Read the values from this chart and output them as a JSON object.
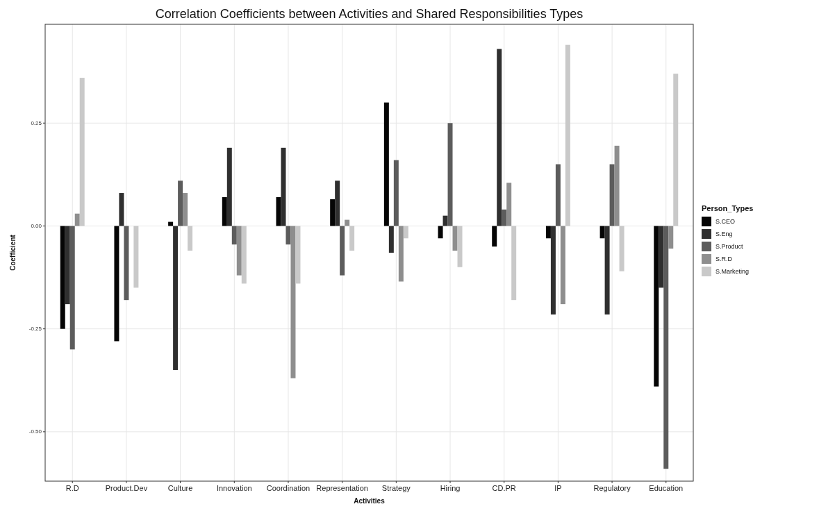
{
  "chart_data": {
    "type": "bar",
    "title": "Correlation Coefficients between Activities and Shared Responsibilities Types",
    "xlabel": "Activities",
    "ylabel": "Coefficient",
    "legend_title": "Person_Types",
    "categories": [
      "R.D",
      "Product.Dev",
      "Culture",
      "Innovation",
      "Coordination",
      "Representation",
      "Strategy",
      "Hiring",
      "CD.PR",
      "IP",
      "Regulatory",
      "Education"
    ],
    "series": [
      {
        "name": "S.CEO",
        "color": "#050505",
        "values": [
          -0.25,
          -0.28,
          0.01,
          0.07,
          0.07,
          0.065,
          0.3,
          -0.03,
          -0.05,
          -0.03,
          -0.03,
          -0.39
        ]
      },
      {
        "name": "S.Eng",
        "color": "#2f2f2f",
        "values": [
          -0.19,
          0.08,
          -0.35,
          0.19,
          0.19,
          0.11,
          -0.065,
          0.025,
          0.43,
          -0.215,
          -0.215,
          -0.15
        ]
      },
      {
        "name": "S.Product",
        "color": "#5c5c5c",
        "values": [
          -0.3,
          -0.18,
          0.11,
          -0.045,
          -0.045,
          -0.12,
          0.16,
          0.25,
          0.04,
          0.15,
          0.15,
          -0.59
        ]
      },
      {
        "name": "S.R.D",
        "color": "#8e8e8e",
        "values": [
          0.03,
          0,
          0.08,
          -0.12,
          -0.37,
          0.015,
          -0.135,
          -0.06,
          0.105,
          -0.19,
          0.195,
          -0.055
        ]
      },
      {
        "name": "S.Marketing",
        "color": "#c9c9c9",
        "values": [
          0.36,
          -0.15,
          -0.06,
          -0.14,
          -0.14,
          -0.06,
          -0.03,
          -0.1,
          -0.18,
          0.44,
          -0.11,
          0.37
        ]
      }
    ],
    "ylim": [
      -0.62,
      0.49
    ],
    "yticks": [
      {
        "value": -0.5,
        "label": "-0.50"
      },
      {
        "value": -0.25,
        "label": "-0.25"
      },
      {
        "value": 0,
        "label": "0.00"
      },
      {
        "value": 0.25,
        "label": "0.25"
      }
    ],
    "grid": true,
    "legend": "right"
  }
}
